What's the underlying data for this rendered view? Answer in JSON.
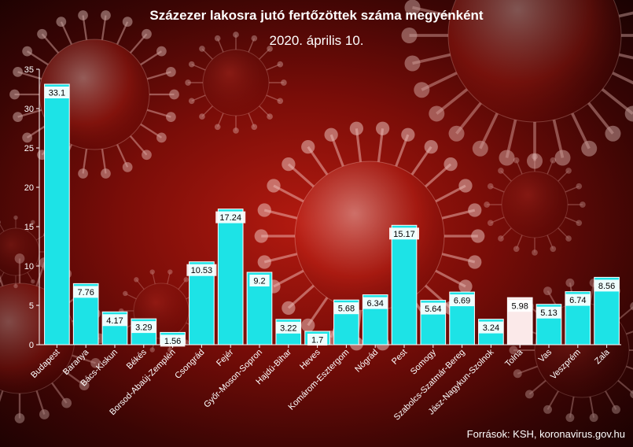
{
  "colors": {
    "bar": "#1de3e6",
    "bar_highlight": "#fbe9e9",
    "bar_stroke": "#ffffff",
    "axis": "#ffffff",
    "label_bg": "#ffffff",
    "text": "#ffffff",
    "background": "#8c0f0a"
  },
  "header": {
    "title": "Százezer lakosra jutó fertőzöttek száma megyénként",
    "subtitle": "2020. április 10."
  },
  "footer": {
    "sources": "Források: KSH, koronavirus.gov.hu"
  },
  "chart_data": {
    "type": "bar",
    "title": "Százezer lakosra jutó fertőzöttek száma megyénként",
    "subtitle": "2020. április 10.",
    "xlabel": "",
    "ylabel": "",
    "ylim": [
      0,
      35
    ],
    "yticks": [
      0,
      5,
      10,
      15,
      20,
      25,
      30,
      35
    ],
    "grid": false,
    "legend": "none",
    "categories": [
      "Budapest",
      "Baranya",
      "Bács-Kiskun",
      "Békés",
      "Borsod-Abaúj-Zemplén",
      "Csongrád",
      "Fejér",
      "Győr-Moson-Sopron",
      "Hajdú-Bihar",
      "Heves",
      "Komárom-Esztergom",
      "Nógrád",
      "Pest",
      "Somogy",
      "Szabolcs-Szatmár-Bereg",
      "Jász-Nagykun-Szolnok",
      "Tolna",
      "Vas",
      "Veszprém",
      "Zala"
    ],
    "values": [
      33.1,
      7.76,
      4.17,
      3.29,
      1.56,
      10.53,
      17.24,
      9.2,
      3.22,
      1.7,
      5.68,
      6.34,
      15.17,
      5.64,
      6.69,
      3.24,
      5.98,
      5.13,
      6.74,
      8.56
    ],
    "value_labels": [
      "33.1",
      "7.76",
      "4.17",
      "3.29",
      "1.56",
      "10.53",
      "17.24",
      "9.2",
      "3.22",
      "1.7",
      "5.68",
      "6.34",
      "15.17",
      "5.64",
      "6.69",
      "3.24",
      "5.98",
      "5.13",
      "6.74",
      "8.56"
    ],
    "highlight_category": "Tolna"
  }
}
